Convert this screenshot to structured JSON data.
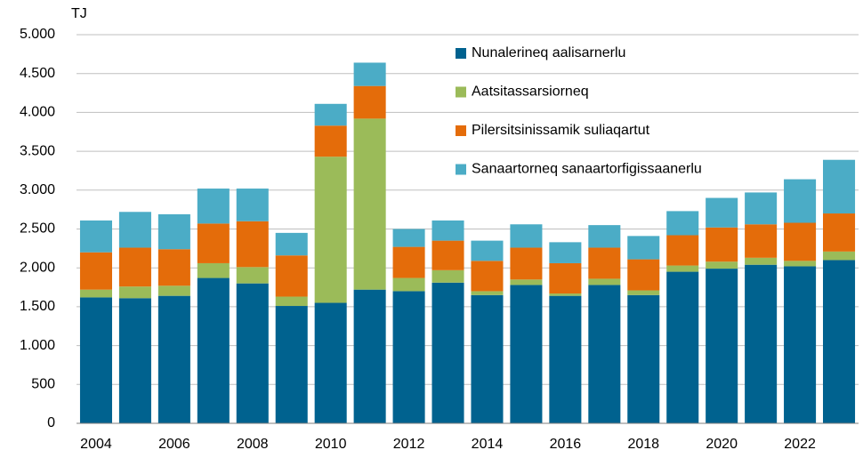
{
  "chart_data": {
    "type": "stacked_bar",
    "y_label": "TJ",
    "categories": [
      "2004",
      null,
      "2006",
      null,
      "2008",
      null,
      "2010",
      null,
      "2012",
      null,
      "2014",
      null,
      "2016",
      null,
      "2018",
      null,
      "2020",
      null,
      "2022",
      null
    ],
    "series": [
      {
        "name": "Nunalerineq aalisarnerlu",
        "color": "#00628f",
        "values": [
          1620,
          1610,
          1640,
          1870,
          1800,
          1510,
          1550,
          1720,
          1700,
          1810,
          1650,
          1780,
          1640,
          1780,
          1650,
          1950,
          1990,
          2040,
          2020,
          2100
        ]
      },
      {
        "name": "Aatsitassarsiorneq",
        "color": "#9bbb59",
        "values": [
          100,
          150,
          130,
          190,
          210,
          120,
          1880,
          2200,
          170,
          160,
          50,
          70,
          30,
          80,
          60,
          80,
          90,
          90,
          70,
          110
        ]
      },
      {
        "name": "Pilersitsinissamik suliaqartut",
        "color": "#e46c0a",
        "values": [
          480,
          500,
          470,
          510,
          590,
          530,
          400,
          420,
          400,
          380,
          390,
          410,
          390,
          400,
          400,
          390,
          440,
          430,
          490,
          490
        ]
      },
      {
        "name": "Sanaartorneq sanaartorfigissaanerlu",
        "color": "#4bacc6",
        "values": [
          410,
          460,
          450,
          450,
          420,
          290,
          280,
          300,
          230,
          260,
          260,
          300,
          270,
          290,
          300,
          310,
          380,
          410,
          560,
          690
        ]
      }
    ],
    "ylim": [
      0,
      5000
    ],
    "yticks": [
      0,
      500,
      {
        "value": 1000,
        "label": "1.000"
      },
      {
        "value": 1500,
        "label": "1.500"
      },
      {
        "value": 2000,
        "label": "2.000"
      },
      {
        "value": 2500,
        "label": "2.500"
      },
      {
        "value": 3000,
        "label": "3.000"
      },
      {
        "value": 3500,
        "label": "3.500"
      },
      {
        "value": 4000,
        "label": "4.000"
      },
      {
        "value": 4500,
        "label": "4.500"
      },
      {
        "value": 5000,
        "label": "5.000"
      }
    ],
    "grid": true,
    "legend": "top-right"
  }
}
